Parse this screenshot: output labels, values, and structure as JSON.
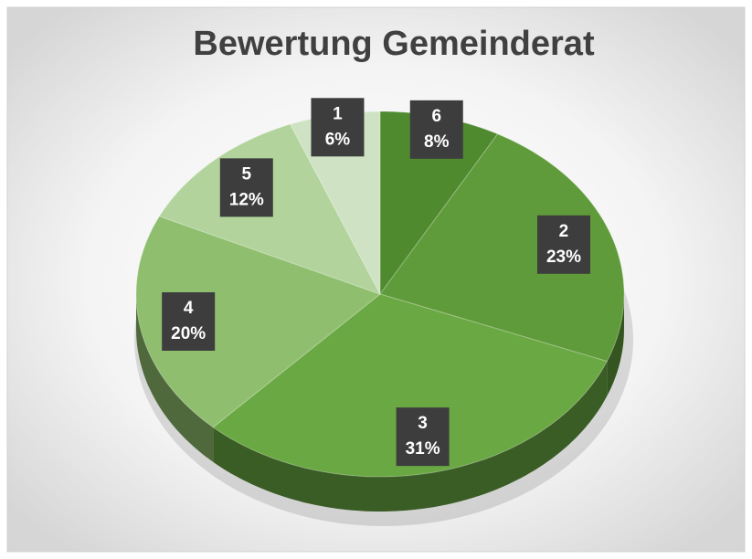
{
  "chart_data": {
    "type": "pie",
    "title": "Bewertung Gemeinderat",
    "categories": [
      "6",
      "2",
      "3",
      "4",
      "5",
      "1"
    ],
    "values": [
      8,
      23,
      31,
      20,
      12,
      6
    ],
    "value_labels": [
      "8%",
      "23%",
      "31%",
      "20%",
      "12%",
      "6%"
    ],
    "colors": [
      "#4f8a2f",
      "#5f9b3a",
      "#6aa843",
      "#8fbf6e",
      "#b2d49c",
      "#cfe3c4"
    ]
  }
}
